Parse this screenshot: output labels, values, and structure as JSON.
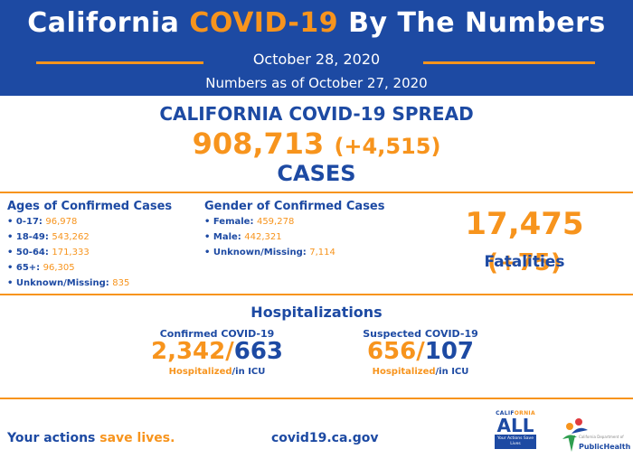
{
  "header": {
    "title_prefix": "California",
    "title_accent": "COVID-19",
    "title_suffix": "By The Numbers",
    "date": "October 28, 2020",
    "as_of": "Numbers as of October 27, 2020"
  },
  "spread": {
    "title": "CALIFORNIA COVID-19 SPREAD",
    "cases": "908,713",
    "cases_delta": "(+4,515)",
    "cases_label": "CASES"
  },
  "ages": {
    "title": "Ages of Confirmed Cases",
    "items": [
      {
        "label": "• 0-17:",
        "value": "96,978"
      },
      {
        "label": "• 18-49:",
        "value": "543,262"
      },
      {
        "label": "• 50-64:",
        "value": "171,333"
      },
      {
        "label": "• 65+:",
        "value": "96,305"
      },
      {
        "label": "• Unknown/Missing:",
        "value": "835"
      }
    ]
  },
  "gender": {
    "title": "Gender of Confirmed Cases",
    "items": [
      {
        "label": "• Female:",
        "value": "459,278"
      },
      {
        "label": "• Male:",
        "value": "442,321"
      },
      {
        "label": "• Unknown/Missing:",
        "value": "7,114"
      }
    ]
  },
  "fatalities": {
    "number": "17,475",
    "delta": "(+75)",
    "label": "Fatalities"
  },
  "hospitalizations": {
    "title": "Hospitalizations",
    "confirmed": {
      "label": "Confirmed COVID-19",
      "hospitalized": "2,342",
      "sep": "/",
      "icu": "663",
      "sub_hosp": "Hospitalized",
      "sub_icu": "/in ICU"
    },
    "suspected": {
      "label": "Suspected COVID-19",
      "hospitalized": "656",
      "sep": "/",
      "icu": "107",
      "sub_hosp": "Hospitalized",
      "sub_icu": "/in ICU"
    }
  },
  "footer": {
    "tagline_prefix": "Your actions",
    "tagline_accent": "save lives.",
    "url": "covid19.ca.gov",
    "ca_logo_top_a": "CALIF",
    "ca_logo_top_b": "ORNIA",
    "ca_logo_main": "ALL",
    "ca_logo_box": "Your Actions Save Lives",
    "ph_logo_small": "California Department of",
    "ph_logo_text": "PublicHealth"
  },
  "colors": {
    "brand_blue": "#1d4aa3",
    "accent_orange": "#f7941d"
  }
}
